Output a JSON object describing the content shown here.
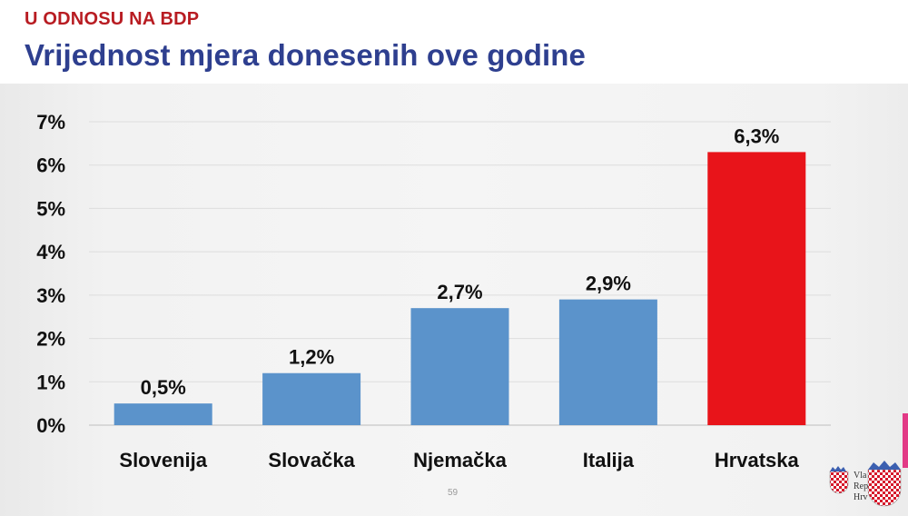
{
  "header": {
    "overtitle": "U ODNOSU NA BDP",
    "title": "Vrijednost mjera donesenih ove godine"
  },
  "chart_data": {
    "type": "bar",
    "title": "Vrijednost mjera donesenih ove godine",
    "xlabel": "",
    "ylabel": "",
    "categories": [
      "Slovenija",
      "Slovačka",
      "Njemačka",
      "Italija",
      "Hrvatska"
    ],
    "values": [
      0.5,
      1.2,
      2.7,
      2.9,
      6.3
    ],
    "data_labels": [
      "0,5%",
      "1,2%",
      "2,7%",
      "2,9%",
      "6,3%"
    ],
    "colors": [
      "#5b93cb",
      "#5b93cb",
      "#5b93cb",
      "#5b93cb",
      "#e8141a"
    ],
    "ylim": [
      0,
      7
    ],
    "yticks": [
      0,
      1,
      2,
      3,
      4,
      5,
      6,
      7
    ],
    "ytick_labels": [
      "0%",
      "1%",
      "2%",
      "3%",
      "4%",
      "5%",
      "6%",
      "7%"
    ],
    "grid": true,
    "legend": "none"
  },
  "footer": {
    "page_number": "59",
    "logo_text": [
      "Vla",
      "Rep",
      "Hrv"
    ],
    "logo_icon": "croatian-coat-of-arms-icon"
  }
}
